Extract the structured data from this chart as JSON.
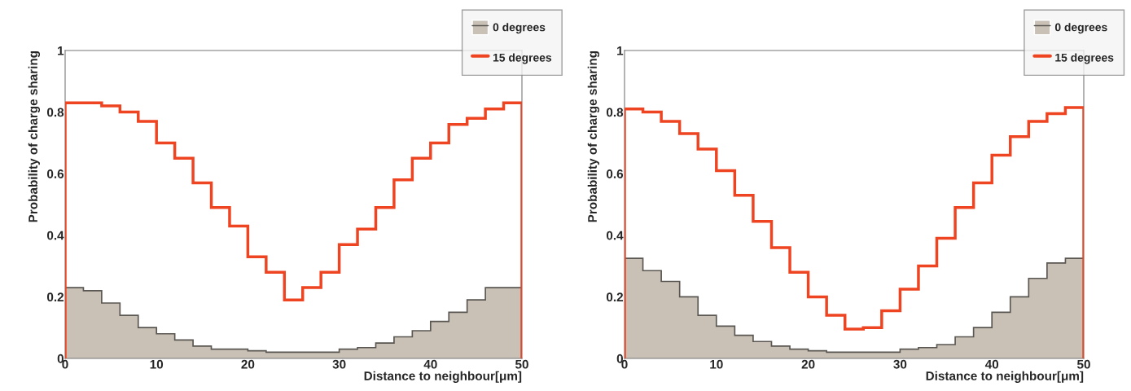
{
  "chart_data": [
    {
      "type": "histogram",
      "xlabel": "Distance to neighbour[μm]",
      "ylabel": "Probability of charge sharing",
      "bins": [
        0,
        2,
        4,
        6,
        8,
        10,
        12,
        14,
        16,
        18,
        20,
        22,
        24,
        26,
        28,
        30,
        32,
        34,
        36,
        38,
        40,
        42,
        44,
        46,
        48,
        50
      ],
      "series": [
        {
          "name": "0 degrees",
          "color": "#c9c1b6",
          "values": [
            0.23,
            0.22,
            0.18,
            0.14,
            0.1,
            0.08,
            0.06,
            0.04,
            0.03,
            0.03,
            0.025,
            0.02,
            0.02,
            0.02,
            0.02,
            0.03,
            0.035,
            0.05,
            0.07,
            0.09,
            0.12,
            0.15,
            0.19,
            0.23,
            0.23
          ]
        },
        {
          "name": "15 degrees",
          "line_style": "solid",
          "color": "#ee4422",
          "values": [
            0.83,
            0.83,
            0.82,
            0.8,
            0.77,
            0.7,
            0.65,
            0.57,
            0.49,
            0.43,
            0.33,
            0.28,
            0.19,
            0.23,
            0.28,
            0.37,
            0.42,
            0.49,
            0.58,
            0.65,
            0.7,
            0.76,
            0.78,
            0.81,
            0.83
          ]
        }
      ],
      "xlim": [
        0,
        50
      ],
      "ylim": [
        0,
        1
      ],
      "xticks": [
        0,
        10,
        20,
        30,
        40,
        50
      ],
      "yticks": [
        0,
        0.2,
        0.4,
        0.6,
        0.8,
        1
      ],
      "legend": "top right",
      "grid": false
    },
    {
      "type": "histogram",
      "xlabel": "Distance to neighbour[μm]",
      "ylabel": "Probability of charge sharing",
      "bins": [
        0,
        2,
        4,
        6,
        8,
        10,
        12,
        14,
        16,
        18,
        20,
        22,
        24,
        26,
        28,
        30,
        32,
        34,
        36,
        38,
        40,
        42,
        44,
        46,
        48,
        50
      ],
      "series": [
        {
          "name": "0 degrees",
          "color": "#c9c1b6",
          "values": [
            0.325,
            0.285,
            0.25,
            0.2,
            0.14,
            0.105,
            0.075,
            0.055,
            0.04,
            0.03,
            0.025,
            0.02,
            0.02,
            0.02,
            0.02,
            0.03,
            0.035,
            0.045,
            0.07,
            0.1,
            0.15,
            0.2,
            0.26,
            0.31,
            0.325
          ]
        },
        {
          "name": "15 degrees",
          "line_style": "solid",
          "color": "#ee4422",
          "values": [
            0.81,
            0.8,
            0.77,
            0.73,
            0.68,
            0.61,
            0.53,
            0.445,
            0.36,
            0.28,
            0.2,
            0.14,
            0.095,
            0.1,
            0.155,
            0.225,
            0.3,
            0.39,
            0.49,
            0.57,
            0.66,
            0.72,
            0.77,
            0.795,
            0.815
          ]
        }
      ],
      "xlim": [
        0,
        50
      ],
      "ylim": [
        0,
        1
      ],
      "xticks": [
        0,
        10,
        20,
        30,
        40,
        50
      ],
      "yticks": [
        0,
        0.2,
        0.4,
        0.6,
        0.8,
        1
      ],
      "legend": "top right",
      "grid": false
    }
  ]
}
